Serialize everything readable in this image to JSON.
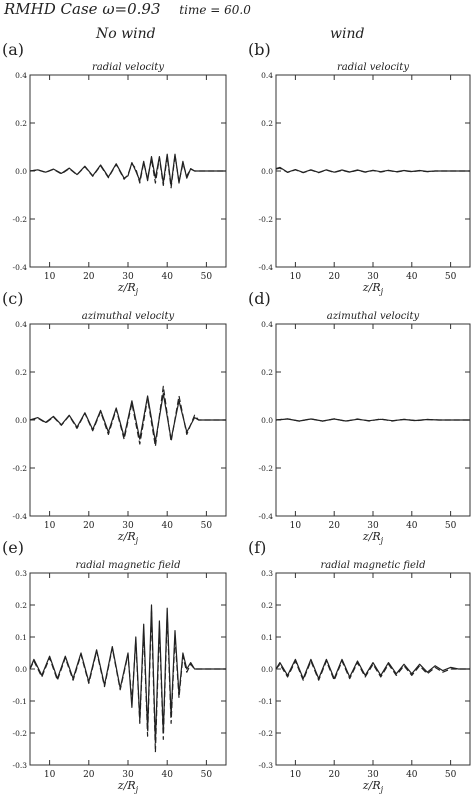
{
  "header": {
    "case_title": "RMHD Case",
    "omega": "ω=0.93",
    "time_label": "time = 60.0"
  },
  "columns": {
    "left": "No wind",
    "right": "wind"
  },
  "colors": {
    "line": "#222222",
    "axis": "#333333"
  },
  "chart_data": [
    {
      "panel": "(a)",
      "type": "line",
      "title": "radial velocity",
      "xlabel": "z/R_j",
      "xlim": [
        5,
        55
      ],
      "ylim": [
        -0.4,
        0.4
      ],
      "xticks": [
        10,
        20,
        30,
        40,
        50
      ],
      "yticks": [
        "0.4",
        "0.2",
        "0.0",
        "-0.2",
        "-0.4"
      ],
      "ytick_values": [
        0.4,
        0.2,
        0.0,
        -0.2,
        -0.4
      ],
      "series": [
        {
          "style": "solid",
          "x": [
            5,
            7,
            9,
            11,
            13,
            15,
            17,
            19,
            21,
            23,
            25,
            27,
            29,
            30,
            31,
            32,
            33,
            34,
            35,
            36,
            37,
            38,
            39,
            40,
            41,
            42,
            43,
            44,
            45,
            46,
            47,
            48,
            50,
            55
          ],
          "y": [
            0.0,
            0.005,
            -0.005,
            0.008,
            -0.01,
            0.012,
            -0.015,
            0.02,
            -0.02,
            0.025,
            -0.025,
            0.03,
            -0.03,
            -0.02,
            0.035,
            0.0,
            -0.04,
            0.04,
            -0.04,
            0.06,
            -0.03,
            0.06,
            -0.05,
            0.07,
            -0.06,
            0.07,
            -0.05,
            0.04,
            -0.03,
            0.01,
            0.0,
            0.0,
            0.0,
            0.0
          ]
        },
        {
          "style": "dashed",
          "x": [
            5,
            7,
            9,
            11,
            13,
            15,
            17,
            19,
            21,
            23,
            25,
            27,
            29,
            30,
            31,
            32,
            33,
            34,
            35,
            36,
            37,
            38,
            39,
            40,
            41,
            42,
            43,
            44,
            45,
            46,
            47,
            48,
            50,
            55
          ],
          "y": [
            0.0,
            0.004,
            -0.006,
            0.007,
            -0.012,
            0.01,
            -0.016,
            0.018,
            -0.022,
            0.022,
            -0.028,
            0.028,
            -0.034,
            -0.015,
            0.03,
            0.01,
            -0.05,
            0.035,
            -0.03,
            0.05,
            -0.05,
            0.055,
            -0.06,
            0.06,
            -0.07,
            0.065,
            -0.045,
            0.03,
            -0.02,
            0.008,
            0.0,
            0.0,
            0.0,
            0.0
          ]
        }
      ]
    },
    {
      "panel": "(b)",
      "type": "line",
      "title": "radial velocity",
      "xlabel": "z/R_j",
      "xlim": [
        5,
        55
      ],
      "ylim": [
        -0.4,
        0.4
      ],
      "xticks": [
        10,
        20,
        30,
        40,
        50
      ],
      "yticks": [
        "0.4",
        "0.2",
        "0.0",
        "-0.2",
        "-0.4"
      ],
      "ytick_values": [
        0.4,
        0.2,
        0.0,
        -0.2,
        -0.4
      ],
      "series": [
        {
          "style": "solid",
          "x": [
            5,
            6,
            8,
            10,
            12,
            14,
            16,
            18,
            20,
            22,
            24,
            26,
            28,
            30,
            32,
            34,
            36,
            38,
            40,
            42,
            44,
            46,
            48,
            50,
            55
          ],
          "y": [
            0.01,
            0.015,
            -0.005,
            0.006,
            -0.006,
            0.005,
            -0.006,
            0.005,
            -0.005,
            0.004,
            -0.004,
            0.004,
            -0.004,
            0.003,
            -0.003,
            0.003,
            -0.003,
            0.002,
            -0.002,
            0.002,
            -0.002,
            0.0,
            0.0,
            0.0,
            0.0
          ]
        },
        {
          "style": "dashed",
          "x": [
            5,
            6,
            8,
            10,
            12,
            14,
            16,
            18,
            20,
            22,
            24,
            26,
            28,
            30,
            32,
            34,
            36,
            38,
            40,
            42,
            44,
            46,
            48,
            50,
            55
          ],
          "y": [
            0.008,
            0.012,
            -0.006,
            0.005,
            -0.007,
            0.004,
            -0.007,
            0.004,
            -0.006,
            0.003,
            -0.005,
            0.003,
            -0.005,
            0.002,
            -0.004,
            0.002,
            -0.004,
            0.001,
            -0.003,
            0.001,
            -0.003,
            0.0,
            0.0,
            0.0,
            0.0
          ]
        }
      ]
    },
    {
      "panel": "(c)",
      "type": "line",
      "title": "azimuthal velocity",
      "xlabel": "z/R_j",
      "xlim": [
        5,
        55
      ],
      "ylim": [
        -0.4,
        0.4
      ],
      "xticks": [
        10,
        20,
        30,
        40,
        50
      ],
      "yticks": [
        "0.4",
        "0.2",
        "0.0",
        "-0.2",
        "-0.4"
      ],
      "ytick_values": [
        0.4,
        0.2,
        0.0,
        -0.2,
        -0.4
      ],
      "series": [
        {
          "style": "solid",
          "x": [
            5,
            7,
            9,
            11,
            13,
            15,
            17,
            19,
            21,
            23,
            25,
            27,
            29,
            31,
            33,
            35,
            37,
            39,
            41,
            43,
            45,
            47,
            48,
            50,
            55
          ],
          "y": [
            0.0,
            0.01,
            -0.01,
            0.015,
            -0.02,
            0.02,
            -0.03,
            0.03,
            -0.04,
            0.04,
            -0.05,
            0.05,
            -0.07,
            0.08,
            -0.08,
            0.1,
            -0.09,
            0.11,
            -0.08,
            0.08,
            -0.05,
            0.01,
            0.0,
            0.0,
            0.0
          ]
        },
        {
          "style": "dashed",
          "x": [
            5,
            7,
            9,
            11,
            13,
            15,
            17,
            19,
            21,
            23,
            25,
            27,
            29,
            31,
            33,
            35,
            37,
            39,
            41,
            43,
            45,
            47,
            48,
            50,
            55
          ],
          "y": [
            0.0,
            0.008,
            -0.012,
            0.012,
            -0.022,
            0.018,
            -0.035,
            0.028,
            -0.045,
            0.035,
            -0.06,
            0.045,
            -0.08,
            0.07,
            -0.1,
            0.09,
            -0.11,
            0.14,
            -0.09,
            0.1,
            -0.06,
            0.02,
            0.0,
            0.0,
            0.0
          ]
        }
      ]
    },
    {
      "panel": "(d)",
      "type": "line",
      "title": "azimuthal velocity",
      "xlabel": "z/R_j",
      "xlim": [
        5,
        55
      ],
      "ylim": [
        -0.4,
        0.4
      ],
      "xticks": [
        10,
        20,
        30,
        40,
        50
      ],
      "yticks": [
        "0.4",
        "0.2",
        "0.0",
        "-0.2",
        "-0.4"
      ],
      "ytick_values": [
        0.4,
        0.2,
        0.0,
        -0.2,
        -0.4
      ],
      "series": [
        {
          "style": "solid",
          "x": [
            5,
            8,
            11,
            14,
            17,
            20,
            23,
            26,
            29,
            32,
            35,
            38,
            41,
            44,
            47,
            50,
            55
          ],
          "y": [
            0.0,
            0.004,
            -0.004,
            0.004,
            -0.004,
            0.004,
            -0.004,
            0.003,
            -0.003,
            0.003,
            -0.003,
            0.002,
            -0.002,
            0.002,
            0.0,
            0.0,
            0.0
          ]
        },
        {
          "style": "dashed",
          "x": [
            5,
            8,
            11,
            14,
            17,
            20,
            23,
            26,
            29,
            32,
            35,
            38,
            41,
            44,
            47,
            50,
            55
          ],
          "y": [
            0.0,
            0.005,
            -0.005,
            0.005,
            -0.005,
            0.005,
            -0.005,
            0.004,
            -0.004,
            0.004,
            -0.004,
            0.003,
            -0.003,
            0.002,
            0.0,
            0.0,
            0.0
          ]
        }
      ]
    },
    {
      "panel": "(e)",
      "type": "line",
      "title": "radial magnetic field",
      "xlabel": "z/R_j",
      "xlim": [
        5,
        55
      ],
      "ylim": [
        -0.3,
        0.3
      ],
      "xticks": [
        10,
        20,
        30,
        40,
        50
      ],
      "yticks": [
        "0.3",
        "0.2",
        "0.1",
        "0.0",
        "-0.1",
        "-0.2",
        "-0.3"
      ],
      "ytick_values": [
        0.3,
        0.2,
        0.1,
        0.0,
        -0.1,
        -0.2,
        -0.3
      ],
      "series": [
        {
          "style": "solid",
          "x": [
            5,
            6,
            8,
            10,
            12,
            14,
            16,
            18,
            20,
            22,
            24,
            26,
            28,
            30,
            31,
            32,
            33,
            34,
            35,
            36,
            37,
            38,
            39,
            40,
            41,
            42,
            43,
            44,
            45,
            46,
            47,
            48,
            50,
            55
          ],
          "y": [
            0.0,
            0.03,
            -0.02,
            0.04,
            -0.03,
            0.04,
            -0.03,
            0.05,
            -0.04,
            0.06,
            -0.05,
            0.07,
            -0.06,
            0.05,
            -0.12,
            0.1,
            -0.16,
            0.14,
            -0.19,
            0.2,
            -0.23,
            0.15,
            -0.2,
            0.19,
            -0.15,
            0.12,
            -0.08,
            0.05,
            0.0,
            0.02,
            0.0,
            0.0,
            0.0,
            0.0
          ]
        },
        {
          "style": "dashed",
          "x": [
            5,
            6,
            8,
            10,
            12,
            14,
            16,
            18,
            20,
            22,
            24,
            26,
            28,
            30,
            31,
            32,
            33,
            34,
            35,
            36,
            37,
            38,
            39,
            40,
            41,
            42,
            43,
            44,
            45,
            46,
            47,
            48,
            50,
            55
          ],
          "y": [
            0.0,
            0.025,
            -0.025,
            0.035,
            -0.035,
            0.035,
            -0.035,
            0.045,
            -0.045,
            0.055,
            -0.055,
            0.065,
            -0.065,
            0.045,
            -0.1,
            0.09,
            -0.17,
            0.12,
            -0.21,
            0.18,
            -0.26,
            0.13,
            -0.22,
            0.17,
            -0.17,
            0.1,
            -0.09,
            0.04,
            -0.01,
            0.015,
            0.0,
            0.0,
            0.0,
            0.0
          ]
        }
      ]
    },
    {
      "panel": "(f)",
      "type": "line",
      "title": "radial magnetic field",
      "xlabel": "z/R_j",
      "xlim": [
        5,
        55
      ],
      "ylim": [
        -0.3,
        0.3
      ],
      "xticks": [
        10,
        20,
        30,
        40,
        50
      ],
      "yticks": [
        "0.3",
        "0.2",
        "0.1",
        "0.0",
        "-0.1",
        "-0.2",
        "-0.3"
      ],
      "ytick_values": [
        0.3,
        0.2,
        0.1,
        0.0,
        -0.1,
        -0.2,
        -0.3
      ],
      "series": [
        {
          "style": "solid",
          "x": [
            5,
            6,
            8,
            10,
            12,
            14,
            16,
            18,
            20,
            22,
            24,
            26,
            28,
            30,
            32,
            34,
            36,
            38,
            40,
            42,
            44,
            46,
            48,
            50,
            52,
            55
          ],
          "y": [
            0.0,
            0.02,
            -0.02,
            0.03,
            -0.03,
            0.03,
            -0.03,
            0.03,
            -0.03,
            0.03,
            -0.025,
            0.025,
            -0.02,
            0.02,
            -0.02,
            0.02,
            -0.015,
            0.015,
            -0.015,
            0.015,
            -0.01,
            0.01,
            -0.005,
            0.005,
            0.0,
            0.0
          ]
        },
        {
          "style": "dashed",
          "x": [
            5,
            6,
            8,
            10,
            12,
            14,
            16,
            18,
            20,
            22,
            24,
            26,
            28,
            30,
            32,
            34,
            36,
            38,
            40,
            42,
            44,
            46,
            48,
            50,
            52,
            55
          ],
          "y": [
            0.0,
            0.015,
            -0.025,
            0.025,
            -0.035,
            0.025,
            -0.035,
            0.025,
            -0.035,
            0.025,
            -0.03,
            0.02,
            -0.025,
            0.015,
            -0.025,
            0.015,
            -0.02,
            0.01,
            -0.02,
            0.01,
            -0.015,
            0.005,
            -0.01,
            0.0,
            0.0,
            0.0
          ]
        }
      ]
    }
  ]
}
